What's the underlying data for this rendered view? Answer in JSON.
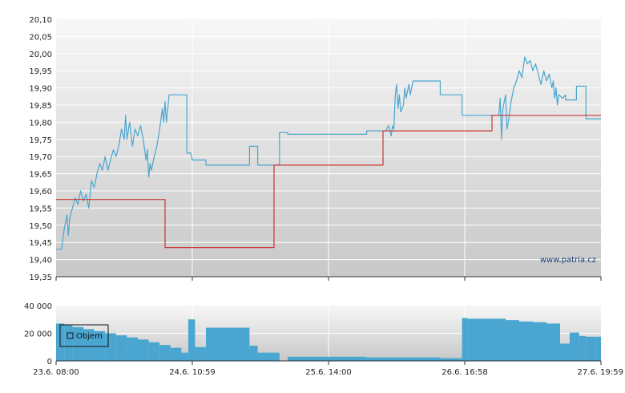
{
  "watermark": "www.patria.cz",
  "chart_data": [
    {
      "type": "line",
      "ylim": [
        19.35,
        20.1
      ],
      "xlim": [
        0,
        4
      ],
      "yticks": [
        "20,10",
        "20,05",
        "20,00",
        "19,95",
        "19,90",
        "19,85",
        "19,80",
        "19,75",
        "19,70",
        "19,65",
        "19,60",
        "19,55",
        "19,50",
        "19,45",
        "19,40",
        "19,35"
      ],
      "grid": true,
      "series": [
        {
          "color": "#4aa6d0",
          "step": false,
          "points": [
            [
              0.0,
              19.43
            ],
            [
              0.04,
              19.43
            ],
            [
              0.06,
              19.49
            ],
            [
              0.08,
              19.53
            ],
            [
              0.09,
              19.47
            ],
            [
              0.1,
              19.52
            ],
            [
              0.12,
              19.55
            ],
            [
              0.14,
              19.58
            ],
            [
              0.16,
              19.56
            ],
            [
              0.18,
              19.6
            ],
            [
              0.2,
              19.57
            ],
            [
              0.22,
              19.59
            ],
            [
              0.24,
              19.55
            ],
            [
              0.26,
              19.63
            ],
            [
              0.28,
              19.61
            ],
            [
              0.3,
              19.65
            ],
            [
              0.32,
              19.68
            ],
            [
              0.34,
              19.66
            ],
            [
              0.36,
              19.7
            ],
            [
              0.38,
              19.66
            ],
            [
              0.4,
              19.69
            ],
            [
              0.42,
              19.72
            ],
            [
              0.44,
              19.7
            ],
            [
              0.46,
              19.73
            ],
            [
              0.48,
              19.78
            ],
            [
              0.5,
              19.75
            ],
            [
              0.51,
              19.82
            ],
            [
              0.52,
              19.75
            ],
            [
              0.54,
              19.8
            ],
            [
              0.56,
              19.73
            ],
            [
              0.58,
              19.78
            ],
            [
              0.6,
              19.76
            ],
            [
              0.62,
              19.79
            ],
            [
              0.64,
              19.75
            ],
            [
              0.66,
              19.69
            ],
            [
              0.67,
              19.72
            ],
            [
              0.68,
              19.64
            ],
            [
              0.69,
              19.68
            ],
            [
              0.7,
              19.66
            ],
            [
              0.72,
              19.7
            ],
            [
              0.74,
              19.73
            ],
            [
              0.76,
              19.78
            ],
            [
              0.78,
              19.84
            ],
            [
              0.79,
              19.8
            ],
            [
              0.8,
              19.86
            ],
            [
              0.81,
              19.8
            ],
            [
              0.82,
              19.84
            ],
            [
              0.83,
              19.88
            ],
            [
              0.96,
              19.88
            ],
            [
              0.96,
              19.71
            ],
            [
              0.99,
              19.71
            ],
            [
              1.0,
              19.69
            ],
            [
              1.1,
              19.69
            ],
            [
              1.1,
              19.675
            ],
            [
              1.42,
              19.675
            ],
            [
              1.42,
              19.73
            ],
            [
              1.48,
              19.73
            ],
            [
              1.48,
              19.675
            ],
            [
              1.64,
              19.675
            ],
            [
              1.64,
              19.77
            ],
            [
              1.7,
              19.77
            ],
            [
              1.7,
              19.765
            ],
            [
              2.28,
              19.765
            ],
            [
              2.28,
              19.775
            ],
            [
              2.42,
              19.775
            ],
            [
              2.44,
              19.79
            ],
            [
              2.46,
              19.76
            ],
            [
              2.47,
              19.79
            ],
            [
              2.48,
              19.78
            ],
            [
              2.49,
              19.88
            ],
            [
              2.5,
              19.91
            ],
            [
              2.51,
              19.84
            ],
            [
              2.52,
              19.88
            ],
            [
              2.53,
              19.83
            ],
            [
              2.55,
              19.85
            ],
            [
              2.56,
              19.9
            ],
            [
              2.57,
              19.87
            ],
            [
              2.59,
              19.91
            ],
            [
              2.6,
              19.88
            ],
            [
              2.62,
              19.92
            ],
            [
              2.82,
              19.92
            ],
            [
              2.82,
              19.88
            ],
            [
              2.98,
              19.88
            ],
            [
              2.98,
              19.82
            ],
            [
              3.25,
              19.82
            ],
            [
              3.26,
              19.87
            ],
            [
              3.27,
              19.75
            ],
            [
              3.28,
              19.84
            ],
            [
              3.3,
              19.88
            ],
            [
              3.31,
              19.78
            ],
            [
              3.32,
              19.8
            ],
            [
              3.34,
              19.86
            ],
            [
              3.36,
              19.9
            ],
            [
              3.38,
              19.92
            ],
            [
              3.4,
              19.95
            ],
            [
              3.42,
              19.93
            ],
            [
              3.44,
              19.99
            ],
            [
              3.46,
              19.97
            ],
            [
              3.48,
              19.98
            ],
            [
              3.5,
              19.95
            ],
            [
              3.52,
              19.97
            ],
            [
              3.54,
              19.94
            ],
            [
              3.56,
              19.91
            ],
            [
              3.58,
              19.95
            ],
            [
              3.6,
              19.92
            ],
            [
              3.62,
              19.94
            ],
            [
              3.64,
              19.9
            ],
            [
              3.65,
              19.92
            ],
            [
              3.66,
              19.87
            ],
            [
              3.67,
              19.9
            ],
            [
              3.68,
              19.85
            ],
            [
              3.69,
              19.88
            ],
            [
              3.72,
              19.87
            ],
            [
              3.74,
              19.88
            ],
            [
              3.74,
              19.865
            ],
            [
              3.82,
              19.865
            ],
            [
              3.82,
              19.905
            ],
            [
              3.89,
              19.905
            ],
            [
              3.89,
              19.81
            ],
            [
              4.0,
              19.81
            ]
          ]
        },
        {
          "color": "#cc3333",
          "step": true,
          "points": [
            [
              0.0,
              19.575
            ],
            [
              0.8,
              19.575
            ],
            [
              0.8,
              19.435
            ],
            [
              1.6,
              19.435
            ],
            [
              1.6,
              19.675
            ],
            [
              2.4,
              19.675
            ],
            [
              2.4,
              19.775
            ],
            [
              3.2,
              19.775
            ],
            [
              3.2,
              19.82
            ],
            [
              4.0,
              19.82
            ]
          ]
        }
      ]
    },
    {
      "type": "bar",
      "ylim": [
        0,
        40000
      ],
      "xlim": [
        0,
        4
      ],
      "yticks": [
        "40 000",
        "20 000",
        "0"
      ],
      "xticks": [
        "23.6. 08:00",
        "24.6. 10:59",
        "25.6. 14:00",
        "26.6. 16:58",
        "27.6. 19:59"
      ],
      "grid": true,
      "legend": {
        "label": "Objem",
        "placement": "top-left"
      },
      "series": [
        {
          "name": "Objem",
          "color": "#4aa6d0",
          "bars": [
            [
              0.0,
              0.06,
              27000
            ],
            [
              0.06,
              0.12,
              26000
            ],
            [
              0.12,
              0.2,
              24500
            ],
            [
              0.2,
              0.28,
              23000
            ],
            [
              0.28,
              0.36,
              21500
            ],
            [
              0.36,
              0.44,
              20000
            ],
            [
              0.44,
              0.52,
              18500
            ],
            [
              0.52,
              0.6,
              17000
            ],
            [
              0.6,
              0.68,
              15500
            ],
            [
              0.68,
              0.76,
              13500
            ],
            [
              0.76,
              0.84,
              11500
            ],
            [
              0.84,
              0.92,
              9500
            ],
            [
              0.92,
              0.97,
              6000
            ],
            [
              0.97,
              1.02,
              30000
            ],
            [
              1.02,
              1.1,
              10000
            ],
            [
              1.1,
              1.42,
              24000
            ],
            [
              1.42,
              1.48,
              11000
            ],
            [
              1.48,
              1.64,
              6000
            ],
            [
              1.7,
              2.28,
              3000
            ],
            [
              2.28,
              2.82,
              2500
            ],
            [
              2.82,
              2.98,
              2000
            ],
            [
              2.98,
              3.02,
              31000
            ],
            [
              3.02,
              3.1,
              30500
            ],
            [
              3.1,
              3.2,
              30500
            ],
            [
              3.2,
              3.3,
              30500
            ],
            [
              3.3,
              3.4,
              29500
            ],
            [
              3.4,
              3.5,
              28500
            ],
            [
              3.5,
              3.6,
              28000
            ],
            [
              3.6,
              3.7,
              27000
            ],
            [
              3.7,
              3.77,
              12500
            ],
            [
              3.77,
              3.84,
              20500
            ],
            [
              3.84,
              3.89,
              18000
            ],
            [
              3.89,
              3.96,
              17500
            ],
            [
              3.96,
              4.0,
              17500
            ]
          ]
        }
      ]
    }
  ]
}
